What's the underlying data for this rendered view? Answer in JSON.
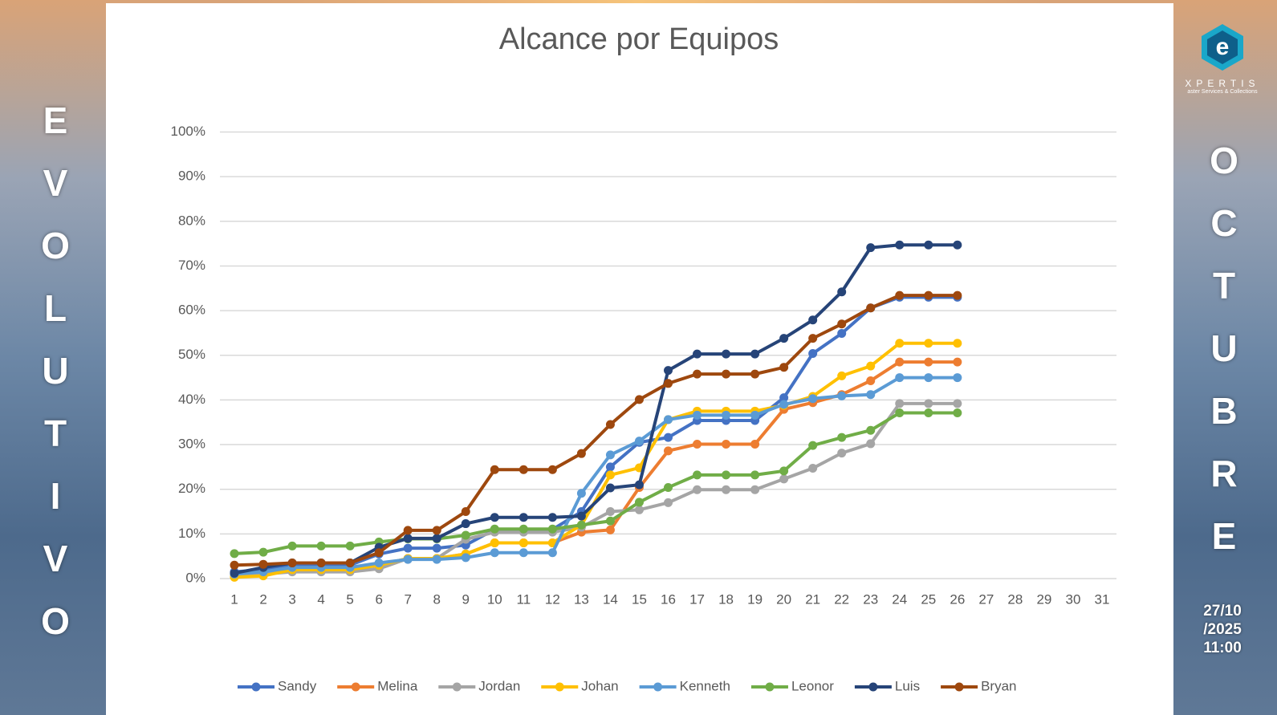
{
  "chart_data": {
    "type": "line",
    "title": "Alcance por Equipos",
    "categories": [
      "1",
      "2",
      "3",
      "4",
      "5",
      "6",
      "7",
      "8",
      "9",
      "10",
      "11",
      "12",
      "13",
      "14",
      "15",
      "16",
      "17",
      "18",
      "19",
      "20",
      "21",
      "22",
      "23",
      "24",
      "25",
      "26",
      "27",
      "28",
      "29",
      "30",
      "31"
    ],
    "ylim": [
      0,
      100
    ],
    "yticks": [
      {
        "value": 0,
        "label": "0%"
      },
      {
        "value": 10,
        "label": "10%"
      },
      {
        "value": 20,
        "label": "20%"
      },
      {
        "value": 30,
        "label": "30%"
      },
      {
        "value": 40,
        "label": "40%"
      },
      {
        "value": 50,
        "label": "50%"
      },
      {
        "value": 60,
        "label": "60%"
      },
      {
        "value": 70,
        "label": "70%"
      },
      {
        "value": 80,
        "label": "80%"
      },
      {
        "value": 90,
        "label": "90%"
      },
      {
        "value": 100,
        "label": "100%"
      }
    ],
    "grid": true,
    "legend": "bottom",
    "series": [
      {
        "name": "Sandy",
        "color": "#4472c4",
        "values": [
          1.5,
          2,
          3,
          3,
          3,
          5.5,
          6.8,
          6.8,
          7.5,
          11,
          11,
          11,
          15,
          25,
          30.5,
          31.6,
          35.4,
          35.4,
          35.4,
          40.5,
          50.4,
          54.9,
          60.6,
          63,
          63,
          63,
          null,
          null,
          null,
          null,
          null
        ]
      },
      {
        "name": "Melina",
        "color": "#ed7d31",
        "values": [
          0.5,
          1,
          2,
          2,
          2,
          3,
          4.5,
          4.5,
          5.5,
          8,
          8,
          8,
          10.4,
          10.9,
          20.4,
          28.6,
          30.1,
          30.1,
          30.1,
          37.9,
          39.4,
          41.2,
          44.3,
          48.5,
          48.5,
          48.5,
          null,
          null,
          null,
          null,
          null
        ]
      },
      {
        "name": "Jordan",
        "color": "#a5a5a5",
        "values": [
          0.5,
          1,
          1.5,
          1.5,
          1.5,
          2.2,
          4.5,
          4.5,
          8.8,
          10.4,
          10.4,
          10.4,
          11.5,
          15,
          15.4,
          17,
          19.9,
          19.9,
          19.9,
          22.3,
          24.7,
          28.1,
          30.2,
          39.2,
          39.2,
          39.2,
          null,
          null,
          null,
          null,
          null
        ]
      },
      {
        "name": "Johan",
        "color": "#ffc000",
        "values": [
          0.3,
          0.6,
          2,
          2,
          2,
          3,
          4.5,
          4.5,
          5.5,
          8,
          8,
          8,
          12,
          23.2,
          24.8,
          35.6,
          37.5,
          37.5,
          37.5,
          38.8,
          40.8,
          45.4,
          47.6,
          52.7,
          52.7,
          52.7,
          null,
          null,
          null,
          null,
          null
        ]
      },
      {
        "name": "Kenneth",
        "color": "#5b9bd5",
        "values": [
          1,
          1.5,
          2.5,
          2.5,
          2.5,
          3.5,
          4.3,
          4.3,
          4.7,
          5.8,
          5.8,
          5.8,
          19.1,
          27.7,
          30.8,
          35.6,
          36.6,
          36.6,
          36.6,
          39,
          40.3,
          40.9,
          41.2,
          45,
          45,
          45,
          null,
          null,
          null,
          null,
          null
        ]
      },
      {
        "name": "Leonor",
        "color": "#70ad47",
        "values": [
          5.6,
          5.9,
          7.3,
          7.3,
          7.3,
          8.2,
          8.9,
          8.9,
          9.7,
          11.1,
          11.1,
          11.1,
          12,
          12.9,
          17.1,
          20.4,
          23.2,
          23.2,
          23.2,
          24.1,
          29.8,
          31.6,
          33.2,
          37.1,
          37.1,
          37.1,
          null,
          null,
          null,
          null,
          null
        ]
      },
      {
        "name": "Luis",
        "color": "#264478",
        "values": [
          1.2,
          2.5,
          3.5,
          3.5,
          3.5,
          7,
          9,
          9,
          12.3,
          13.7,
          13.7,
          13.7,
          14,
          20.3,
          21,
          46.6,
          50.3,
          50.3,
          50.3,
          53.8,
          57.9,
          64.2,
          74.1,
          74.7,
          74.7,
          74.7,
          null,
          null,
          null,
          null,
          null
        ]
      },
      {
        "name": "Bryan",
        "color": "#9e480e",
        "values": [
          3,
          3.2,
          3.5,
          3.5,
          3.5,
          5.8,
          10.8,
          10.8,
          15,
          24.4,
          24.4,
          24.4,
          28,
          34.5,
          40.1,
          43.7,
          45.8,
          45.8,
          45.8,
          47.3,
          53.8,
          57,
          60.6,
          63.4,
          63.4,
          63.4,
          null,
          null,
          null,
          null,
          null
        ]
      }
    ]
  },
  "side_left": "EVOLUTIVO",
  "side_right": "OCTUBRE",
  "date_lines": [
    "27/10",
    "/2025",
    "11:00"
  ],
  "logo": {
    "name": "XPERTIS",
    "tagline": "aster Services & Collections"
  }
}
